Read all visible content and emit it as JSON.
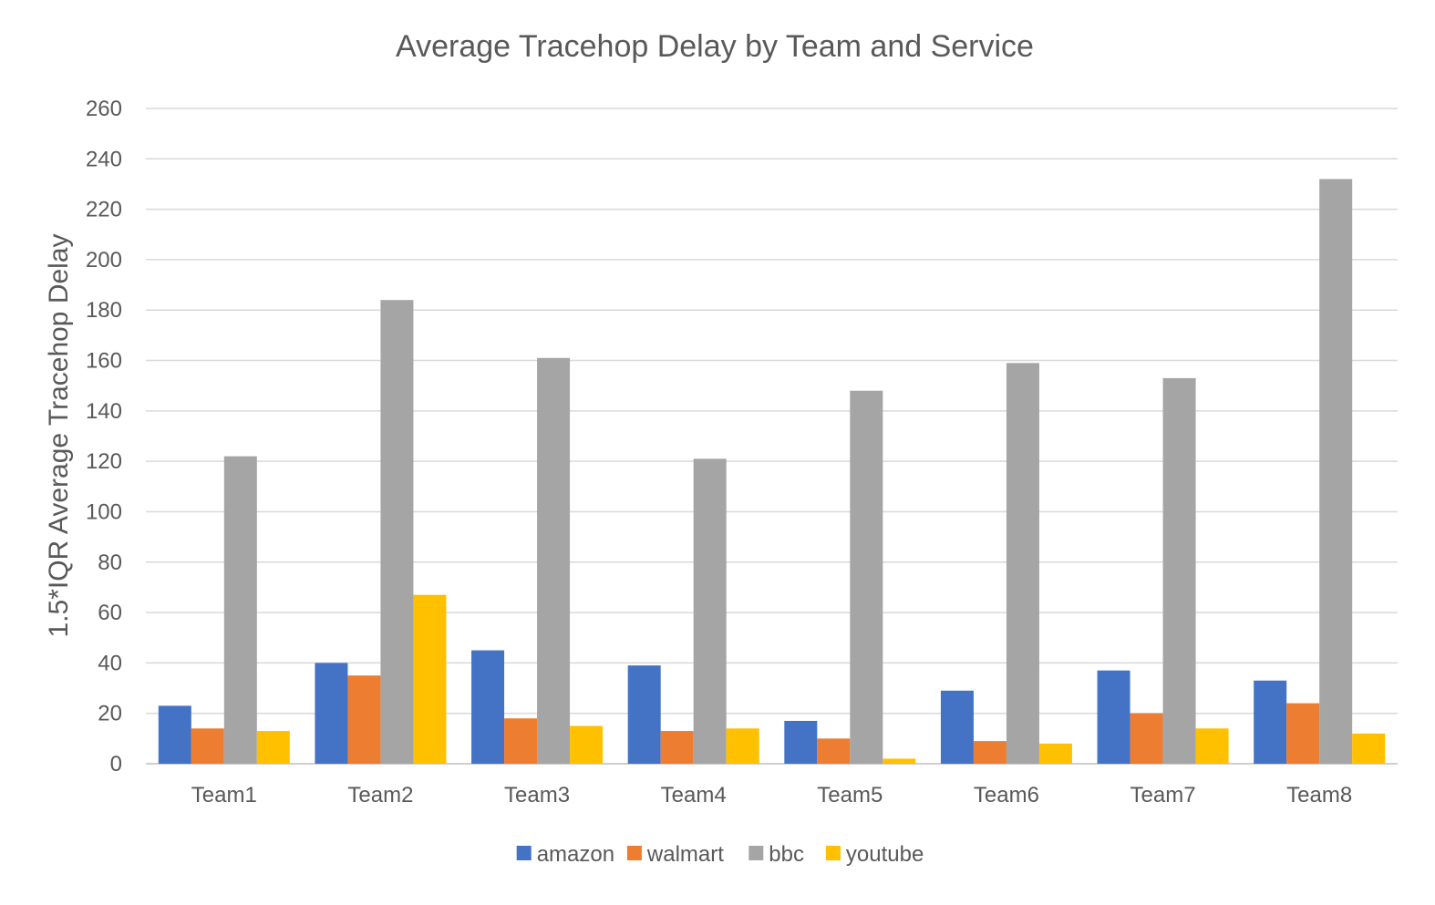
{
  "chart_data": {
    "type": "bar",
    "title": "Average Tracehop Delay by Team and Service",
    "xlabel": "",
    "ylabel": "1.5*IQR Average Tracehop Delay",
    "ylim": [
      0,
      260
    ],
    "yticks": [
      "0",
      "20",
      "40",
      "60",
      "80",
      "100",
      "120",
      "140",
      "160",
      "180",
      "200",
      "220",
      "240",
      "260"
    ],
    "grid": true,
    "legend_position": "bottom",
    "categories": [
      "Team1",
      "Team2",
      "Team3",
      "Team4",
      "Team5",
      "Team6",
      "Team7",
      "Team8"
    ],
    "series": [
      {
        "name": "amazon",
        "color": "#4472C4",
        "values": [
          23,
          40,
          45,
          39,
          17,
          29,
          37,
          33
        ]
      },
      {
        "name": "walmart",
        "color": "#ED7D31",
        "values": [
          14,
          35,
          18,
          13,
          10,
          9,
          20,
          24
        ]
      },
      {
        "name": "bbc",
        "color": "#A5A5A5",
        "values": [
          122,
          184,
          161,
          121,
          148,
          159,
          153,
          232
        ]
      },
      {
        "name": "youtube",
        "color": "#FFC000",
        "values": [
          13,
          67,
          15,
          14,
          2,
          8,
          14,
          12
        ]
      }
    ]
  }
}
